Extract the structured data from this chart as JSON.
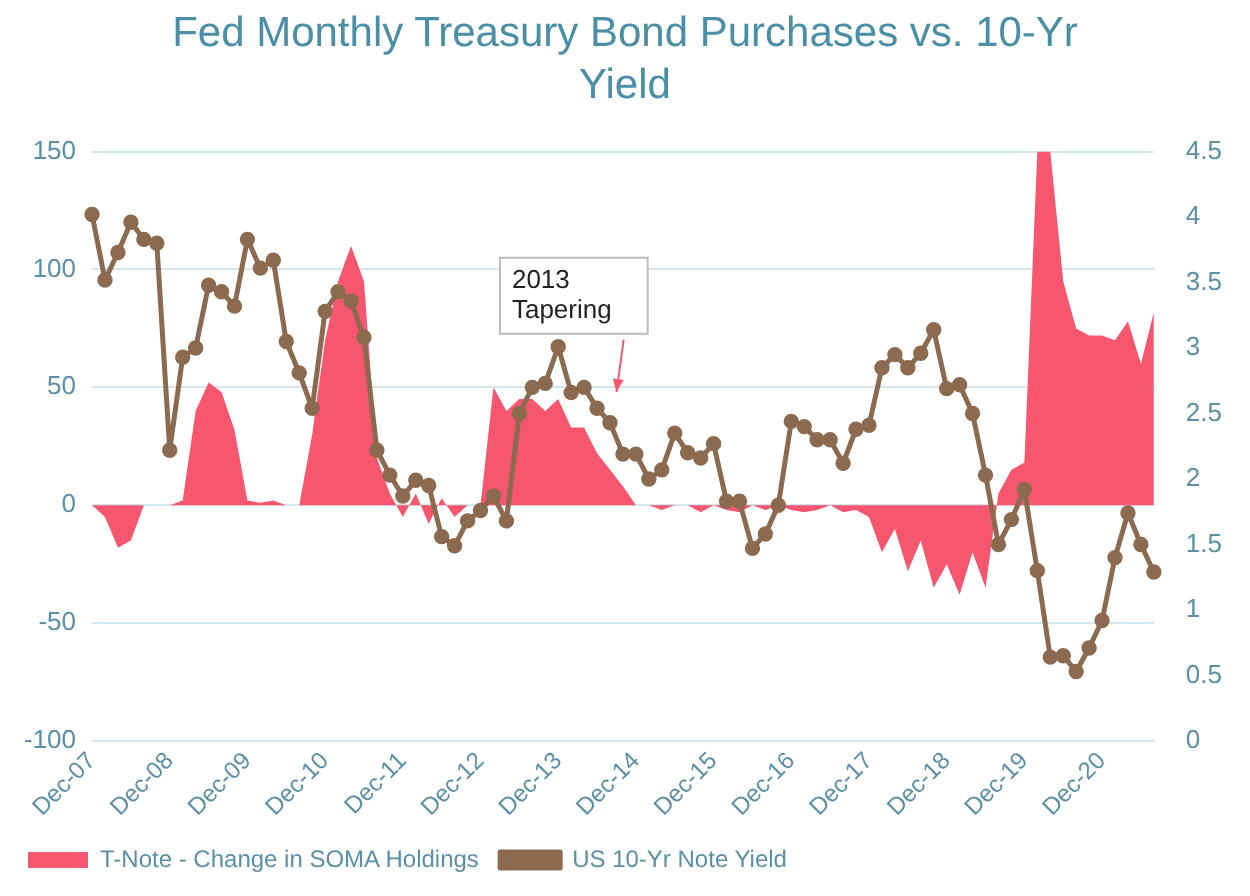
{
  "chart_data": {
    "type": "area",
    "title": "Fed Monthly Treasury Bond Purchases vs. 10-Yr Yield",
    "categories": [
      "Dec-07",
      null,
      null,
      null,
      null,
      null,
      "Dec-08",
      null,
      null,
      null,
      null,
      null,
      "Dec-09",
      null,
      null,
      null,
      null,
      null,
      "Dec-10",
      null,
      null,
      null,
      null,
      null,
      "Dec-11",
      null,
      null,
      null,
      null,
      null,
      "Dec-12",
      null,
      null,
      null,
      null,
      null,
      "Dec-13",
      null,
      null,
      null,
      null,
      null,
      "Dec-14",
      null,
      null,
      null,
      null,
      null,
      "Dec-15",
      null,
      null,
      null,
      null,
      null,
      "Dec-16",
      null,
      null,
      null,
      null,
      null,
      "Dec-17",
      null,
      null,
      null,
      null,
      null,
      "Dec-18",
      null,
      null,
      null,
      null,
      null,
      "Dec-19",
      null,
      null,
      null,
      null,
      null,
      "Dec-20",
      null,
      null,
      null,
      null
    ],
    "series": [
      {
        "name": "T-Note - Change in SOMA Holdings",
        "color": "#f7566f",
        "values": [
          0,
          -5,
          -18,
          -15,
          0,
          0,
          0,
          2,
          40,
          52,
          48,
          32,
          2,
          1,
          2,
          0,
          0,
          30,
          70,
          95,
          110,
          95,
          20,
          5,
          -5,
          5,
          -8,
          3,
          -5,
          0,
          0,
          50,
          40,
          45,
          45,
          40,
          45,
          33,
          33,
          22,
          15,
          8,
          0,
          0,
          -2,
          0,
          0,
          -3,
          0,
          -2,
          -3,
          0,
          -2,
          0,
          -2,
          -3,
          -2,
          0,
          -3,
          -2,
          -5,
          -20,
          -10,
          -28,
          -15,
          -35,
          -25,
          -38,
          -20,
          -35,
          5,
          15,
          18,
          150,
          150,
          95,
          75,
          72,
          72,
          70,
          78,
          60,
          82
        ]
      },
      {
        "name": "US 10-Yr Note Yield",
        "type": "line",
        "axis": "y2",
        "marker": "circle",
        "color": "#8b6a4f",
        "values": [
          4.02,
          3.52,
          3.73,
          3.96,
          3.83,
          3.8,
          2.22,
          2.93,
          3.0,
          3.48,
          3.43,
          3.32,
          3.83,
          3.61,
          3.67,
          3.05,
          2.81,
          2.54,
          3.28,
          3.43,
          3.36,
          3.08,
          2.22,
          2.03,
          1.87,
          1.99,
          1.95,
          1.56,
          1.49,
          1.68,
          1.76,
          1.87,
          1.68,
          2.5,
          2.7,
          2.73,
          3.01,
          2.66,
          2.7,
          2.54,
          2.43,
          2.19,
          2.19,
          2.0,
          2.07,
          2.35,
          2.2,
          2.16,
          2.27,
          1.83,
          1.83,
          1.47,
          1.58,
          1.8,
          2.44,
          2.4,
          2.3,
          2.3,
          2.12,
          2.38,
          2.41,
          2.85,
          2.95,
          2.85,
          2.96,
          3.14,
          2.69,
          2.72,
          2.5,
          2.03,
          1.5,
          1.69,
          1.92,
          1.3,
          0.64,
          0.65,
          0.53,
          0.71,
          0.92,
          1.4,
          1.74,
          1.5,
          1.29
        ]
      }
    ],
    "ylim": [
      -100,
      150
    ],
    "yticks": [
      -100,
      -50,
      0,
      50,
      100,
      150
    ],
    "y2lim": [
      0,
      4.5
    ],
    "y2ticks": [
      0,
      0.5,
      1,
      1.5,
      2,
      2.5,
      3,
      3.5,
      4,
      4.5
    ],
    "annotations": [
      "2013\nTapering"
    ],
    "grid": "y",
    "legend": "bottom left",
    "line_style": "solid"
  }
}
